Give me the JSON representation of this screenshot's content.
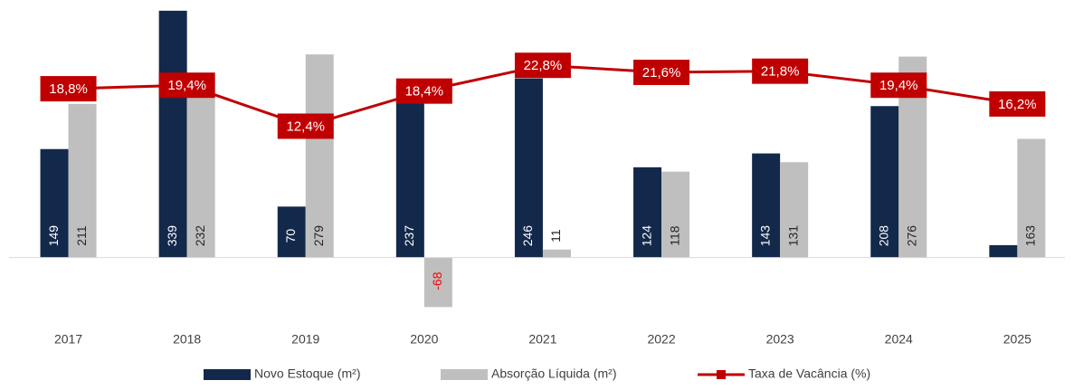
{
  "chart_data": {
    "type": "bar",
    "categories": [
      "2017",
      "2018",
      "2019",
      "2020",
      "2021",
      "2022",
      "2023",
      "2024",
      "2025"
    ],
    "series": [
      {
        "name": "Novo Estoque (m²)",
        "color": "#13294b",
        "values": [
          149,
          339,
          70,
          237,
          246,
          124,
          143,
          208,
          17
        ]
      },
      {
        "name": "Absorção Líquida (m²)",
        "color": "#bfbfbf",
        "values": [
          211,
          232,
          279,
          -68,
          11,
          118,
          131,
          276,
          163
        ]
      },
      {
        "name": "Taxa de Vacância (%)",
        "color": "#c00000",
        "type": "line",
        "axis": "y2",
        "values": [
          18.8,
          19.4,
          12.4,
          18.4,
          22.8,
          21.6,
          21.8,
          19.4,
          16.2
        ],
        "value_labels": [
          "18,8%",
          "19,4%",
          "12,4%",
          "18,4%",
          "22,8%",
          "21,6%",
          "21,8%",
          "19,4%",
          "16,2%"
        ]
      }
    ],
    "ylim": [
      -80,
      350
    ],
    "y2lim": [
      -20,
      33.5
    ],
    "negative_label_color": "#ff0000",
    "legend": "bottom"
  }
}
